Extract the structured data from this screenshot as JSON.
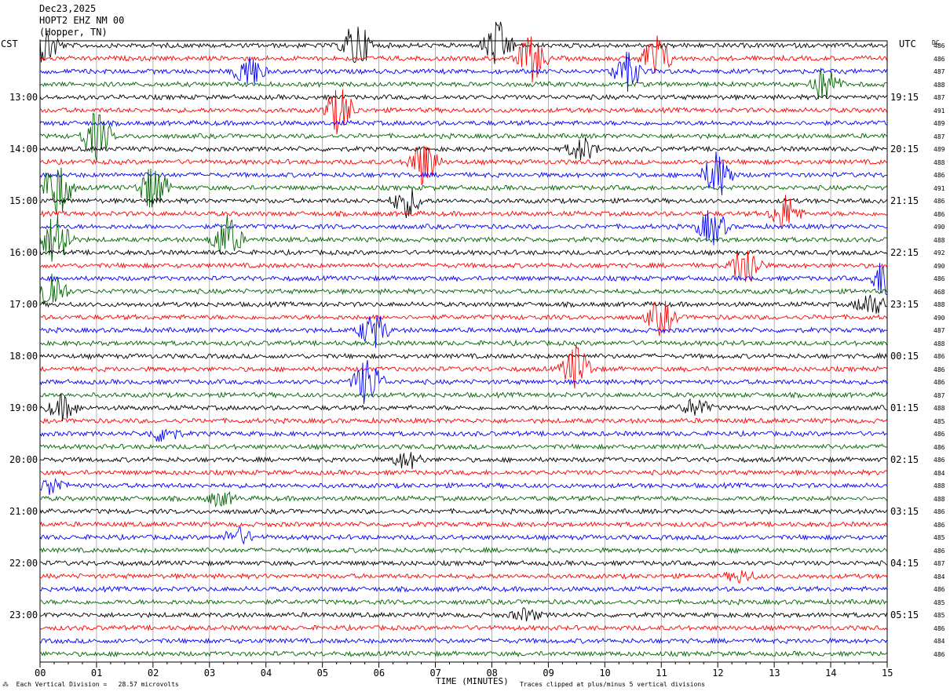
{
  "header": {
    "date": "Dec23,2025",
    "station": "HOPT2 EHZ NM 00",
    "location": "(Hopper, TN)"
  },
  "left_zone": "CST",
  "right_zone": "UTC",
  "dc_header": "DC",
  "footer": {
    "scale": "Each Vertical Division =   28.57 microvolts",
    "clip": "Traces clipped at plus/minus 5 vertical divisions"
  },
  "colors": {
    "trace_cycle": [
      "#000000",
      "#ff0000",
      "#0000ff",
      "#006400"
    ],
    "grid": "#a0a0a0"
  },
  "chart_data": {
    "type": "line",
    "title": "",
    "xlabel": "TIME (MINUTES)",
    "ylabel": "",
    "xlim": [
      0,
      15
    ],
    "x_ticks": [
      "00",
      "01",
      "02",
      "03",
      "04",
      "05",
      "06",
      "07",
      "08",
      "09",
      "10",
      "11",
      "12",
      "13",
      "14",
      "15"
    ],
    "rows_per_hour": 4,
    "row_count": 48,
    "left_hour_labels": [
      "13:00",
      "14:00",
      "15:00",
      "16:00",
      "17:00",
      "18:00",
      "19:00",
      "20:00",
      "21:00",
      "22:00",
      "23:00"
    ],
    "right_hour_labels": [
      "19:15",
      "20:15",
      "21:15",
      "22:15",
      "23:15",
      "00:15",
      "01:15",
      "02:15",
      "03:15",
      "04:15",
      "05:15"
    ],
    "dc_offsets": [
      486,
      486,
      487,
      488,
      487,
      491,
      489,
      487,
      489,
      488,
      486,
      491,
      486,
      486,
      490,
      488,
      492,
      490,
      486,
      468,
      488,
      490,
      487,
      488,
      486,
      486,
      486,
      487,
      488,
      485,
      486,
      486,
      486,
      484,
      488,
      488,
      486,
      486,
      485,
      486,
      487,
      484,
      486,
      485,
      485,
      486,
      484,
      486
    ],
    "trace_colors_cycle": [
      "black",
      "red",
      "blue",
      "green"
    ],
    "events": [
      {
        "row": 0,
        "minute": 0.1,
        "amplitude": 3.0
      },
      {
        "row": 0,
        "minute": 5.6,
        "amplitude": 4.0
      },
      {
        "row": 0,
        "minute": 8.1,
        "amplitude": 4.0
      },
      {
        "row": 1,
        "minute": 8.7,
        "amplitude": 4.0
      },
      {
        "row": 1,
        "minute": 10.9,
        "amplitude": 4.0
      },
      {
        "row": 2,
        "minute": 3.7,
        "amplitude": 3.0
      },
      {
        "row": 2,
        "minute": 10.4,
        "amplitude": 3.0
      },
      {
        "row": 3,
        "minute": 13.9,
        "amplitude": 3.0
      },
      {
        "row": 5,
        "minute": 5.3,
        "amplitude": 4.0
      },
      {
        "row": 7,
        "minute": 1.0,
        "amplitude": 4.0
      },
      {
        "row": 8,
        "minute": 9.6,
        "amplitude": 2.0
      },
      {
        "row": 9,
        "minute": 6.8,
        "amplitude": 4.0
      },
      {
        "row": 10,
        "minute": 12.0,
        "amplitude": 4.0
      },
      {
        "row": 11,
        "minute": 0.3,
        "amplitude": 5.0
      },
      {
        "row": 11,
        "minute": 2.0,
        "amplitude": 4.0
      },
      {
        "row": 12,
        "minute": 6.5,
        "amplitude": 2.5
      },
      {
        "row": 13,
        "minute": 13.2,
        "amplitude": 3.0
      },
      {
        "row": 14,
        "minute": 11.9,
        "amplitude": 3.0
      },
      {
        "row": 15,
        "minute": 0.3,
        "amplitude": 5.0
      },
      {
        "row": 15,
        "minute": 3.3,
        "amplitude": 4.0
      },
      {
        "row": 17,
        "minute": 12.5,
        "amplitude": 4.0
      },
      {
        "row": 18,
        "minute": 15.0,
        "amplitude": 4.0
      },
      {
        "row": 19,
        "minute": 0.2,
        "amplitude": 4.0
      },
      {
        "row": 20,
        "minute": 14.7,
        "amplitude": 2.0
      },
      {
        "row": 21,
        "minute": 11.0,
        "amplitude": 3.0
      },
      {
        "row": 22,
        "minute": 5.9,
        "amplitude": 3.0
      },
      {
        "row": 25,
        "minute": 9.5,
        "amplitude": 4.0
      },
      {
        "row": 26,
        "minute": 5.8,
        "amplitude": 4.0
      },
      {
        "row": 28,
        "minute": 0.4,
        "amplitude": 2.0
      },
      {
        "row": 28,
        "minute": 11.6,
        "amplitude": 1.5
      },
      {
        "row": 30,
        "minute": 2.2,
        "amplitude": 1.5
      },
      {
        "row": 32,
        "minute": 6.5,
        "amplitude": 1.5
      },
      {
        "row": 34,
        "minute": 0.2,
        "amplitude": 1.5
      },
      {
        "row": 35,
        "minute": 3.2,
        "amplitude": 1.2
      },
      {
        "row": 38,
        "minute": 3.5,
        "amplitude": 1.5
      },
      {
        "row": 41,
        "minute": 12.4,
        "amplitude": 1.0
      },
      {
        "row": 44,
        "minute": 8.6,
        "amplitude": 1.0
      }
    ]
  }
}
